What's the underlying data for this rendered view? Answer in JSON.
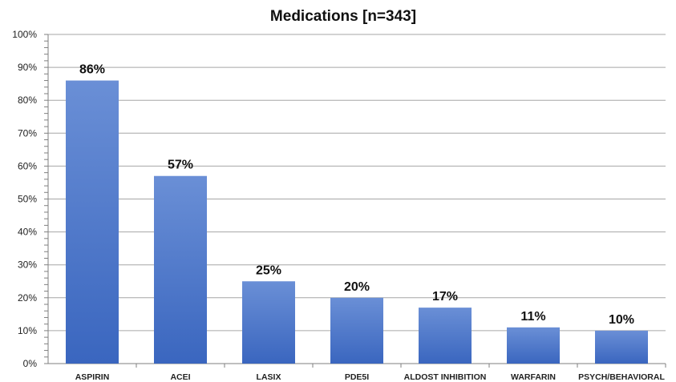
{
  "chart_data": {
    "type": "bar",
    "title": "Medications [n=343]",
    "xlabel": "",
    "ylabel": "",
    "categories": [
      "ASPIRIN",
      "ACEI",
      "LASIX",
      "PDE5I",
      "ALDOST INHIBITION",
      "WARFARIN",
      "PSYCH/BEHAVIORAL"
    ],
    "values": [
      86,
      57,
      25,
      20,
      17,
      11,
      10
    ],
    "data_labels": [
      "86%",
      "57%",
      "25%",
      "20%",
      "17%",
      "11%",
      "10%"
    ],
    "ylim": [
      0,
      100
    ],
    "yticks": [
      0,
      10,
      20,
      30,
      40,
      50,
      60,
      70,
      80,
      90,
      100
    ],
    "ytick_labels": [
      "0%",
      "10%",
      "20%",
      "30%",
      "40%",
      "50%",
      "60%",
      "70%",
      "80%",
      "90%",
      "100%"
    ],
    "grid": true,
    "legend": "none",
    "colors": {
      "bar": "#4472c4",
      "bar_light": "#6a8fd6",
      "grid": "#a6a6a6",
      "axis": "#7f7f7f"
    }
  }
}
